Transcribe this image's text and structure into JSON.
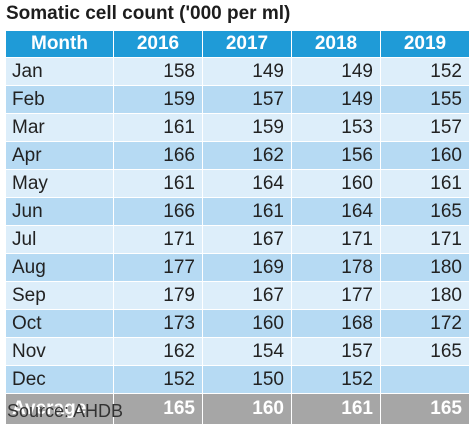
{
  "chart_data": {
    "type": "table",
    "title": "Somatic cell count ('000 per ml)",
    "columns": [
      "Month",
      "2016",
      "2017",
      "2018",
      "2019"
    ],
    "rows": [
      {
        "month": "Jan",
        "values": [
          "158",
          "149",
          "149",
          "152"
        ]
      },
      {
        "month": "Feb",
        "values": [
          "159",
          "157",
          "149",
          "155"
        ]
      },
      {
        "month": "Mar",
        "values": [
          "161",
          "159",
          "153",
          "157"
        ]
      },
      {
        "month": "Apr",
        "values": [
          "166",
          "162",
          "156",
          "160"
        ]
      },
      {
        "month": "May",
        "values": [
          "161",
          "164",
          "160",
          "161"
        ]
      },
      {
        "month": "Jun",
        "values": [
          "166",
          "161",
          "164",
          "165"
        ]
      },
      {
        "month": "Jul",
        "values": [
          "171",
          "167",
          "171",
          "171"
        ]
      },
      {
        "month": "Aug",
        "values": [
          "177",
          "169",
          "178",
          "180"
        ]
      },
      {
        "month": "Sep",
        "values": [
          "179",
          "167",
          "177",
          "180"
        ]
      },
      {
        "month": "Oct",
        "values": [
          "173",
          "160",
          "168",
          "172"
        ]
      },
      {
        "month": "Nov",
        "values": [
          "162",
          "154",
          "157",
          "165"
        ]
      },
      {
        "month": "Dec",
        "values": [
          "152",
          "150",
          "152",
          ""
        ]
      }
    ],
    "average": {
      "label": "Average",
      "values": [
        "165",
        "160",
        "161",
        "165"
      ]
    },
    "source": "Source: AHDB"
  },
  "colors": {
    "header_bg": "#1f9bd7",
    "row_light": "#ddeefa",
    "row_dark": "#b6daf3",
    "average_bg": "#a6a6a6"
  }
}
